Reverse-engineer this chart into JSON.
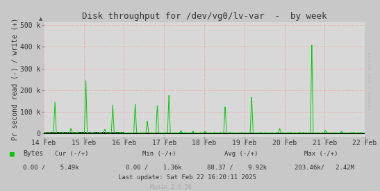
{
  "title": "Disk throughput for /dev/vg0/lv-var  -  by week",
  "ylabel": "Pr second read (-) / write (+)",
  "xlabel_ticks": [
    "14 Feb",
    "15 Feb",
    "16 Feb",
    "17 Feb",
    "18 Feb",
    "19 Feb",
    "20 Feb",
    "21 Feb",
    "22 Feb"
  ],
  "ytick_labels": [
    "0",
    "100 k",
    "200 k",
    "300 k",
    "400 k",
    "500 k"
  ],
  "ytick_values": [
    0,
    100000,
    200000,
    300000,
    400000,
    500000
  ],
  "ylim": [
    -15000,
    515000
  ],
  "xlim": [
    0,
    8
  ],
  "background_color": "#c8c8c8",
  "plot_bg_color": "#d8d8d8",
  "line_color_green": "#00cc00",
  "line_color_black": "#000000",
  "grid_color_h": "#ff8080",
  "grid_color_v": "#ff8080",
  "title_color": "#333333",
  "text_color": "#333333",
  "legend_text": "Bytes",
  "footer_line3": "Last update: Sat Feb 22 16:20:11 2025",
  "munin_version": "Munin 2.0.56",
  "rrdtool_label": "RRDTOOL / TOBI OETIKER",
  "spike_positions_green": [
    0.28,
    0.68,
    1.05,
    1.52,
    1.72,
    2.28,
    2.58,
    2.83,
    3.12,
    3.42,
    3.72,
    4.02,
    4.52,
    5.18,
    5.88,
    6.68,
    7.02,
    7.42
  ],
  "spike_heights_green": [
    145000,
    22000,
    250000,
    18000,
    133000,
    138000,
    58000,
    128000,
    183000,
    12000,
    8000,
    8000,
    128000,
    173000,
    22000,
    415000,
    12000,
    8000
  ],
  "noise_seed": 42
}
